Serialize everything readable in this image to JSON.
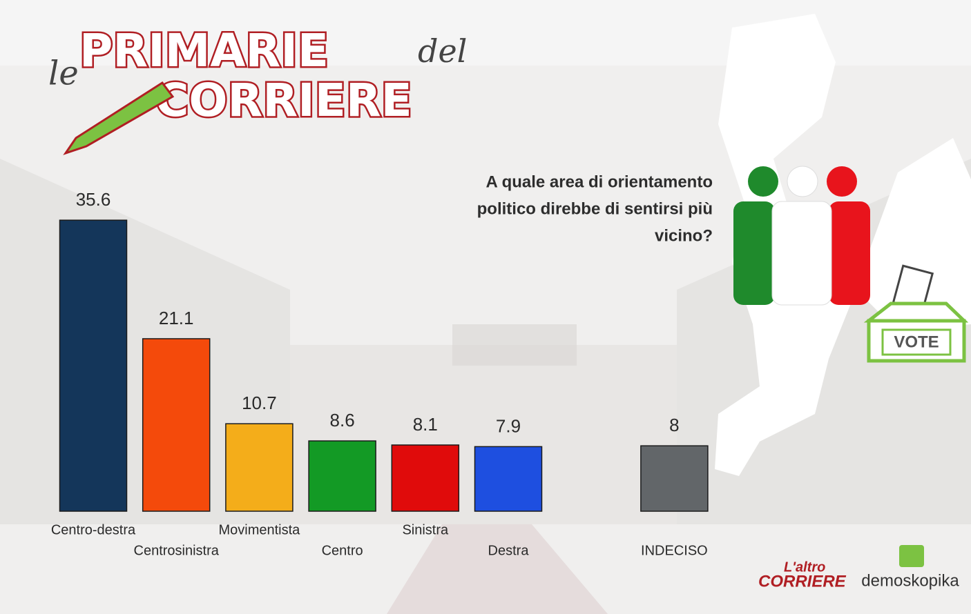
{
  "chart_data": {
    "type": "bar",
    "title_lines": [
      "A quale area di orientamento",
      "politico  direbbe di sentirsi più",
      "vicino?"
    ],
    "categories": [
      "Centro-destra",
      "Centrosinistra",
      "Movimentista",
      "Centro",
      "Sinistra",
      "Destra",
      null,
      "INDECISO"
    ],
    "values": [
      35.6,
      21.1,
      10.7,
      8.6,
      8.1,
      7.9,
      null,
      8
    ],
    "colors": [
      "#14365a",
      "#f44a0b",
      "#f4ad1a",
      "#139a25",
      "#e00b0b",
      "#1e4fe0",
      null,
      "#626669"
    ]
  },
  "branding": {
    "logo_le": "le",
    "logo_primarie": "PRIMARIE",
    "logo_del": "del",
    "logo_corriere": "CORRIERE",
    "vote": "VOTE",
    "source_laltro": "L'altro",
    "source_corriere": "CORRIERE",
    "source_demoskopika": "demoskopika"
  }
}
